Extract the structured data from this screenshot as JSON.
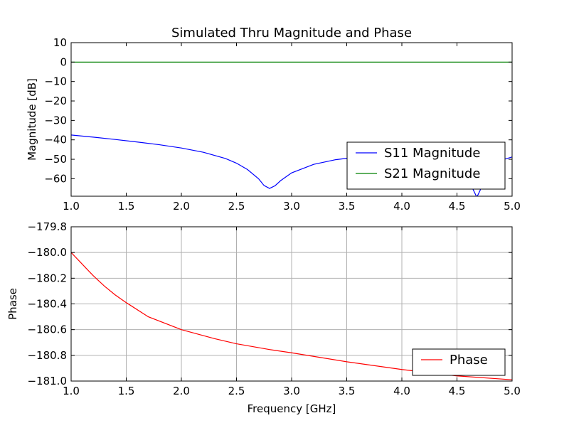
{
  "chart_data": [
    {
      "type": "line",
      "title": "Simulated Thru Magnitude and Phase",
      "xlabel": "",
      "ylabel": "Magnitude [dB]",
      "xlim": [
        1.0,
        5.0
      ],
      "ylim": [
        -69,
        10
      ],
      "xticks": [
        1.0,
        1.5,
        2.0,
        2.5,
        3.0,
        3.5,
        4.0,
        4.5,
        5.0
      ],
      "xtick_labels": [
        "1.0",
        "1.5",
        "2.0",
        "2.5",
        "3.0",
        "3.5",
        "4.0",
        "4.5",
        "5.0"
      ],
      "yticks": [
        10,
        0,
        -10,
        -20,
        -30,
        -40,
        -50,
        -60
      ],
      "ytick_labels": [
        "10",
        "0",
        "−10",
        "−20",
        "−30",
        "−40",
        "−50",
        "−60"
      ],
      "grid": false,
      "legend_position": "bottom-right",
      "series": [
        {
          "name": "S11 Magnitude",
          "color": "#0000ff",
          "x": [
            1.0,
            1.2,
            1.4,
            1.6,
            1.8,
            2.0,
            2.2,
            2.4,
            2.5,
            2.6,
            2.7,
            2.75,
            2.8,
            2.85,
            2.9,
            3.0,
            3.2,
            3.4,
            3.6,
            3.8,
            4.0,
            4.2,
            4.4,
            4.5,
            4.55,
            4.6,
            4.65,
            4.68,
            4.71,
            4.75,
            4.8,
            4.9,
            5.0
          ],
          "y": [
            -37.5,
            -38.6,
            -39.8,
            -41.1,
            -42.5,
            -44.2,
            -46.4,
            -49.6,
            -52.0,
            -55.3,
            -60.0,
            -63.5,
            -65.0,
            -63.6,
            -61.0,
            -57.0,
            -52.6,
            -50.2,
            -48.8,
            -48.0,
            -48.0,
            -48.8,
            -51.0,
            -53.5,
            -56.0,
            -60.0,
            -66.0,
            -69.5,
            -66.0,
            -58.0,
            -53.5,
            -50.5,
            -48.8
          ]
        },
        {
          "name": "S21 Magnitude",
          "color": "#008000",
          "x": [
            1.0,
            5.0
          ],
          "y": [
            0.0,
            0.0
          ]
        }
      ]
    },
    {
      "type": "line",
      "title": "",
      "xlabel": "Frequency [GHz]",
      "ylabel": "Phase",
      "xlim": [
        1.0,
        5.0
      ],
      "ylim": [
        -181.0,
        -179.8
      ],
      "xticks": [
        1.0,
        1.5,
        2.0,
        2.5,
        3.0,
        3.5,
        4.0,
        4.5,
        5.0
      ],
      "xtick_labels": [
        "1.0",
        "1.5",
        "2.0",
        "2.5",
        "3.0",
        "3.5",
        "4.0",
        "4.5",
        "5.0"
      ],
      "yticks": [
        -179.8,
        -180.0,
        -180.2,
        -180.4,
        -180.6,
        -180.8,
        -181.0
      ],
      "ytick_labels": [
        "−179.8",
        "−180.0",
        "−180.2",
        "−180.4",
        "−180.6",
        "−180.8",
        "−181.0"
      ],
      "grid": true,
      "legend_position": "bottom-right",
      "series": [
        {
          "name": "Phase",
          "color": "#ff0000",
          "x": [
            1.0,
            1.1,
            1.2,
            1.3,
            1.4,
            1.5,
            1.7,
            2.0,
            2.3,
            2.5,
            2.8,
            3.0,
            3.5,
            4.0,
            4.5,
            5.0
          ],
          "y": [
            -180.0,
            -180.09,
            -180.18,
            -180.26,
            -180.33,
            -180.39,
            -180.5,
            -180.6,
            -180.67,
            -180.71,
            -180.755,
            -180.78,
            -180.85,
            -180.91,
            -180.96,
            -180.99
          ]
        }
      ]
    }
  ]
}
